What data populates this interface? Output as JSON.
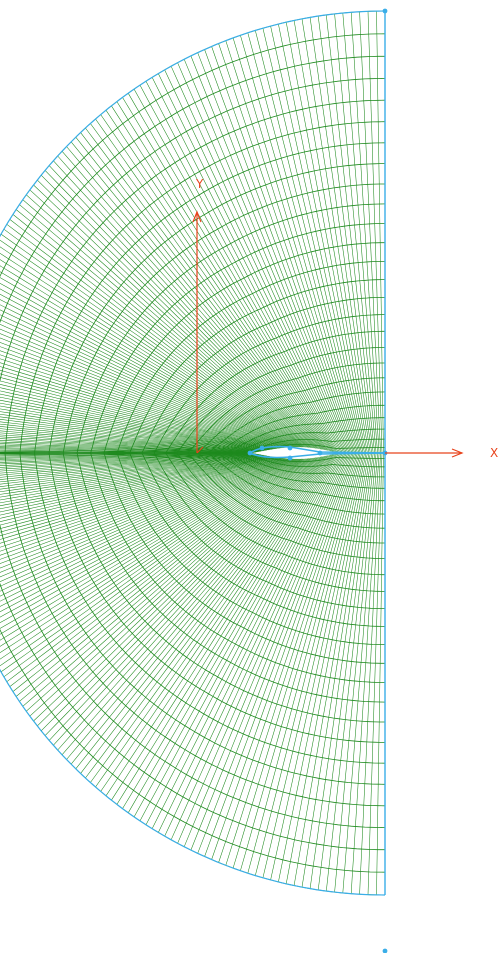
{
  "axes": {
    "x_label": "X",
    "y_label": "Y"
  },
  "colors": {
    "mesh": "#1e8a1e",
    "boundary": "#3aaee8",
    "axis": "#e8431c",
    "background": "#ffffff"
  },
  "mesh": {
    "type": "half C-type structured grid around airfoil",
    "radial_lines": 260,
    "circumferential_rings": 26
  }
}
